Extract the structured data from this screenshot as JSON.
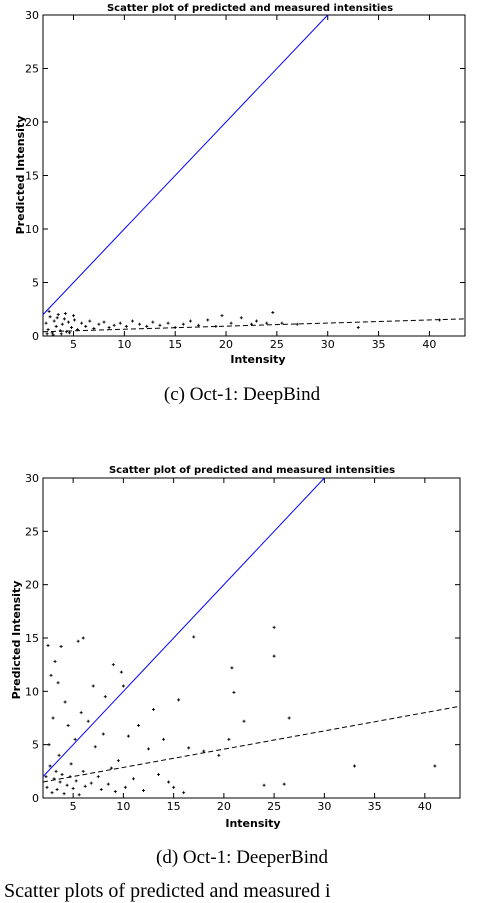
{
  "chart_data": [
    {
      "type": "scatter",
      "title": "Scatter plot of predicted and measured intensities",
      "xlabel": "Intensity",
      "ylabel": "Predicted Intensity",
      "xlim": [
        2,
        43.5
      ],
      "ylim": [
        0,
        30
      ],
      "xticks": [
        "5",
        "10",
        "15",
        "20",
        "25",
        "30",
        "35",
        "40"
      ],
      "yticks": [
        "0",
        "5",
        "10",
        "15",
        "20",
        "25",
        "30"
      ],
      "identity_line": {
        "from": [
          2,
          2
        ],
        "to": [
          30,
          30
        ],
        "color": "#0000ff"
      },
      "trend_line": {
        "from": [
          2,
          0.4
        ],
        "to": [
          43.5,
          1.6
        ],
        "style": "dashed"
      },
      "points": [
        [
          2.3,
          1.2
        ],
        [
          2.5,
          0.6
        ],
        [
          2.7,
          1.8
        ],
        [
          2.9,
          0.3
        ],
        [
          3.1,
          1.4
        ],
        [
          3.3,
          0.9
        ],
        [
          3.5,
          2.0
        ],
        [
          3.7,
          0.5
        ],
        [
          3.9,
          1.1
        ],
        [
          4.1,
          1.6
        ],
        [
          4.3,
          0.4
        ],
        [
          4.5,
          1.3
        ],
        [
          4.8,
          0.8
        ],
        [
          5.1,
          1.5
        ],
        [
          5.4,
          0.6
        ],
        [
          5.8,
          1.2
        ],
        [
          6.2,
          0.9
        ],
        [
          6.6,
          1.4
        ],
        [
          7.0,
          0.7
        ],
        [
          7.5,
          1.1
        ],
        [
          8.0,
          1.3
        ],
        [
          8.5,
          0.8
        ],
        [
          9.0,
          1.0
        ],
        [
          9.6,
          1.2
        ],
        [
          10.2,
          0.9
        ],
        [
          10.8,
          1.4
        ],
        [
          11.5,
          1.1
        ],
        [
          12.2,
          0.9
        ],
        [
          12.8,
          1.3
        ],
        [
          13.5,
          1.0
        ],
        [
          14.3,
          1.2
        ],
        [
          15.0,
          0.8
        ],
        [
          15.8,
          1.1
        ],
        [
          16.5,
          1.4
        ],
        [
          17.3,
          1.0
        ],
        [
          18.2,
          1.5
        ],
        [
          19.0,
          0.9
        ],
        [
          19.6,
          1.9
        ],
        [
          20.5,
          1.2
        ],
        [
          21.5,
          1.7
        ],
        [
          22.5,
          1.1
        ],
        [
          23.0,
          1.4
        ],
        [
          24.0,
          1.2
        ],
        [
          24.6,
          2.2
        ],
        [
          25.5,
          1.2
        ],
        [
          27.0,
          1.1
        ],
        [
          33.0,
          0.8
        ],
        [
          41.0,
          1.5
        ],
        [
          2.4,
          0.2
        ],
        [
          2.6,
          2.3
        ],
        [
          3.0,
          0.1
        ],
        [
          3.4,
          1.7
        ],
        [
          3.8,
          0.2
        ],
        [
          4.2,
          2.1
        ],
        [
          4.6,
          0.3
        ],
        [
          5.0,
          1.9
        ]
      ],
      "caption": "(c) Oct-1: DeepBind"
    },
    {
      "type": "scatter",
      "title": "Scatter plot of predicted and measured intensities",
      "xlabel": "Intensity",
      "ylabel": "Predicted Intensity",
      "xlim": [
        2,
        43.5
      ],
      "ylim": [
        0,
        30
      ],
      "xticks": [
        "5",
        "10",
        "15",
        "20",
        "25",
        "30",
        "35",
        "40"
      ],
      "yticks": [
        "0",
        "5",
        "10",
        "15",
        "20",
        "25",
        "30"
      ],
      "identity_line": {
        "from": [
          2,
          2
        ],
        "to": [
          30,
          30
        ],
        "color": "#0000ff"
      },
      "trend_line": {
        "from": [
          2,
          1.5
        ],
        "to": [
          43.5,
          8.6
        ],
        "style": "dashed"
      },
      "points": [
        [
          2.5,
          14.3
        ],
        [
          3.8,
          14.2
        ],
        [
          5.5,
          14.7
        ],
        [
          6.0,
          15.0
        ],
        [
          9.0,
          12.5
        ],
        [
          9.8,
          11.8
        ],
        [
          3.2,
          12.8
        ],
        [
          2.8,
          11.5
        ],
        [
          3.5,
          10.8
        ],
        [
          7.0,
          10.5
        ],
        [
          8.2,
          9.5
        ],
        [
          10.0,
          10.5
        ],
        [
          17.0,
          15.1
        ],
        [
          25.0,
          16.0
        ],
        [
          25.0,
          13.3
        ],
        [
          20.8,
          12.2
        ],
        [
          21.0,
          9.9
        ],
        [
          26.5,
          7.5
        ],
        [
          22.0,
          7.2
        ],
        [
          15.5,
          9.2
        ],
        [
          13.0,
          8.3
        ],
        [
          4.2,
          9.0
        ],
        [
          5.8,
          8.0
        ],
        [
          11.5,
          6.8
        ],
        [
          14.0,
          5.5
        ],
        [
          16.5,
          4.7
        ],
        [
          18.0,
          4.4
        ],
        [
          19.5,
          4.0
        ],
        [
          20.5,
          5.5
        ],
        [
          12.5,
          4.6
        ],
        [
          10.5,
          5.8
        ],
        [
          9.5,
          3.5
        ],
        [
          8.0,
          6.0
        ],
        [
          7.2,
          4.8
        ],
        [
          6.5,
          7.2
        ],
        [
          5.2,
          5.5
        ],
        [
          4.5,
          6.8
        ],
        [
          3.0,
          7.5
        ],
        [
          2.6,
          5.0
        ],
        [
          3.6,
          4.0
        ],
        [
          4.8,
          3.2
        ],
        [
          6.0,
          2.5
        ],
        [
          7.5,
          2.0
        ],
        [
          8.8,
          2.8
        ],
        [
          11.0,
          1.8
        ],
        [
          13.5,
          2.2
        ],
        [
          15.0,
          1.0
        ],
        [
          16.0,
          0.5
        ],
        [
          24.0,
          1.2
        ],
        [
          26.0,
          1.3
        ],
        [
          33.0,
          3.0
        ],
        [
          41.0,
          3.0
        ],
        [
          2.3,
          2.0
        ],
        [
          2.4,
          1.0
        ],
        [
          2.7,
          3.0
        ],
        [
          2.9,
          0.5
        ],
        [
          3.1,
          1.8
        ],
        [
          3.3,
          2.5
        ],
        [
          3.4,
          0.8
        ],
        [
          3.7,
          1.5
        ],
        [
          3.9,
          2.2
        ],
        [
          4.1,
          0.4
        ],
        [
          4.4,
          1.2
        ],
        [
          4.7,
          2.0
        ],
        [
          5.0,
          0.9
        ],
        [
          5.3,
          1.6
        ],
        [
          5.6,
          0.3
        ],
        [
          6.2,
          1.1
        ],
        [
          6.8,
          1.4
        ],
        [
          7.8,
          0.8
        ],
        [
          8.5,
          1.3
        ],
        [
          9.2,
          0.6
        ],
        [
          10.2,
          1.0
        ],
        [
          12.0,
          0.7
        ],
        [
          14.5,
          1.5
        ]
      ],
      "caption": "(d) Oct-1: DeeperBind"
    }
  ],
  "bottom_caption": "Scatter plots of predicted and measured i"
}
